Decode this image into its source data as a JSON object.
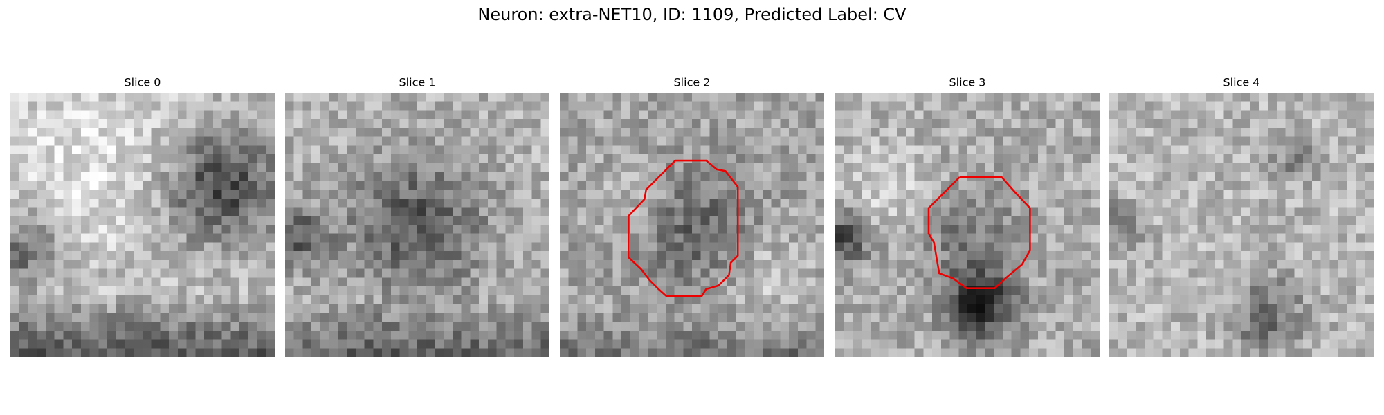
{
  "header": {
    "title": "Neuron: extra-NET10, ID: 1109, Predicted Label: CV"
  },
  "panels": [
    {
      "title": "Slice 0"
    },
    {
      "title": "Slice 1"
    },
    {
      "title": "Slice 2"
    },
    {
      "title": "Slice 3"
    },
    {
      "title": "Slice 4"
    }
  ]
}
